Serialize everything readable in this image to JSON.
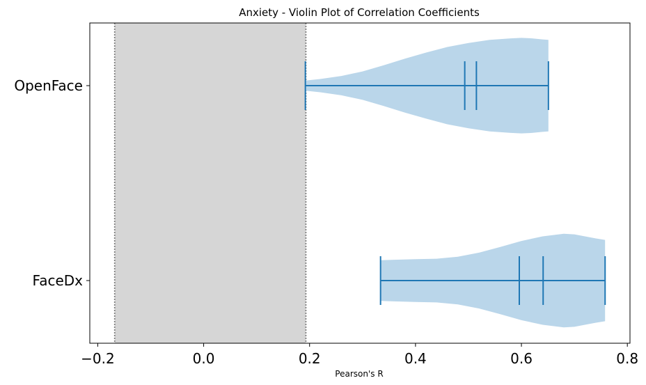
{
  "chart_data": {
    "type": "violin",
    "orientation": "horizontal",
    "title": "Anxiety - Violin Plot of Correlation Coefficients",
    "xlabel": "Pearson's R",
    "ylabel": "",
    "xlim": [
      -0.215,
      0.805
    ],
    "xticks": [
      -0.2,
      0.0,
      0.2,
      0.4,
      0.6,
      0.8
    ],
    "xtick_labels": [
      "−0.2",
      "0.0",
      "0.2",
      "0.4",
      "0.6",
      "0.8"
    ],
    "grid": false,
    "legend": "none",
    "colors": {
      "violin_fill": "#bad6ea",
      "violin_lines": "#1f77b4",
      "shaded_band": "#d6d6d6",
      "band_edges": "#808080"
    },
    "shaded_region": {
      "x_min": -0.168,
      "x_max": 0.193
    },
    "categories": [
      "OpenFace",
      "FaceDx"
    ],
    "series": [
      {
        "name": "OpenFace",
        "min": 0.192,
        "mean": 0.493,
        "median": 0.515,
        "max": 0.651,
        "density": [
          [
            0.192,
            0.1
          ],
          [
            0.22,
            0.13
          ],
          [
            0.26,
            0.19
          ],
          [
            0.3,
            0.28
          ],
          [
            0.34,
            0.4
          ],
          [
            0.38,
            0.53
          ],
          [
            0.42,
            0.65
          ],
          [
            0.46,
            0.76
          ],
          [
            0.5,
            0.84
          ],
          [
            0.54,
            0.9
          ],
          [
            0.58,
            0.93
          ],
          [
            0.6,
            0.94
          ],
          [
            0.62,
            0.93
          ],
          [
            0.64,
            0.91
          ],
          [
            0.651,
            0.9
          ]
        ]
      },
      {
        "name": "FaceDx",
        "min": 0.334,
        "mean": 0.596,
        "median": 0.641,
        "max": 0.758,
        "density": [
          [
            0.334,
            0.4
          ],
          [
            0.36,
            0.41
          ],
          [
            0.4,
            0.42
          ],
          [
            0.44,
            0.43
          ],
          [
            0.48,
            0.47
          ],
          [
            0.52,
            0.55
          ],
          [
            0.56,
            0.66
          ],
          [
            0.6,
            0.78
          ],
          [
            0.64,
            0.87
          ],
          [
            0.68,
            0.92
          ],
          [
            0.7,
            0.91
          ],
          [
            0.72,
            0.87
          ],
          [
            0.74,
            0.83
          ],
          [
            0.758,
            0.8
          ]
        ]
      }
    ]
  }
}
